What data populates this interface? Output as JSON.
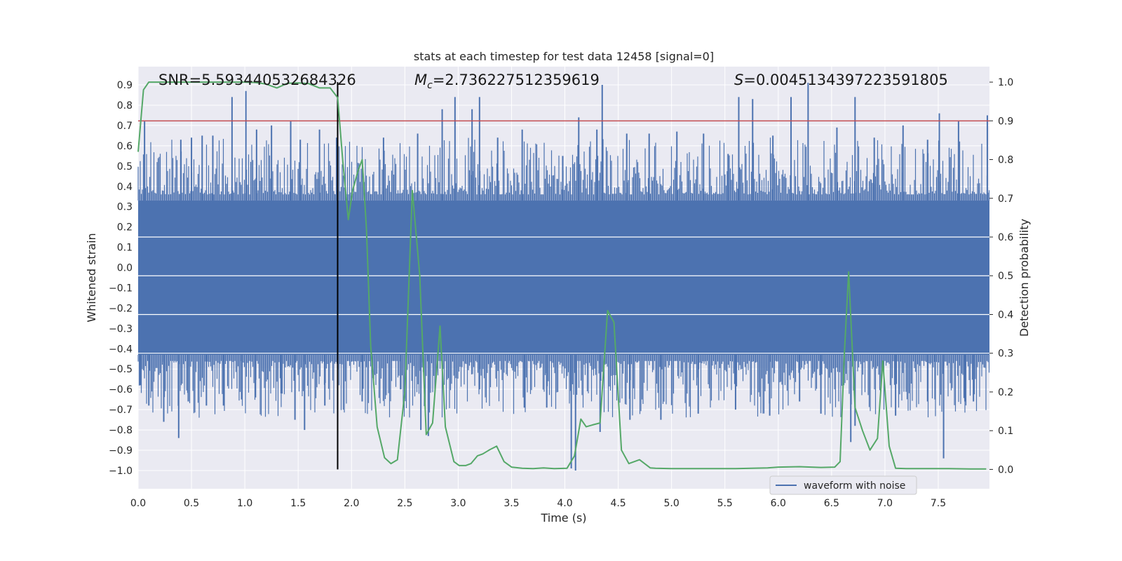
{
  "chart_data": {
    "type": "line",
    "title": "stats at each timestep for test data 12458 [signal=0]",
    "xlabel": "Time (s)",
    "ylabel": "Whitened strain",
    "y2label": "Detection probability",
    "xlim": [
      0.0,
      7.98
    ],
    "ylim": [
      -1.09,
      0.99
    ],
    "y2lim": [
      -0.05,
      1.04
    ],
    "xticks": [
      "0.0",
      "0.5",
      "1.0",
      "1.5",
      "2.0",
      "2.5",
      "3.0",
      "3.5",
      "4.0",
      "4.5",
      "5.0",
      "5.5",
      "6.0",
      "6.5",
      "7.0",
      "7.5"
    ],
    "yticks": [
      "0.9",
      "0.8",
      "0.7",
      "0.6",
      "0.5",
      "0.4",
      "0.3",
      "0.2",
      "0.1",
      "0.0",
      "−0.1",
      "−0.2",
      "−0.3",
      "−0.4",
      "−0.5",
      "−0.6",
      "−0.7",
      "−0.8",
      "−0.9",
      "−1.0"
    ],
    "y2ticks": [
      "1.0",
      "0.9",
      "0.8",
      "0.7",
      "0.6",
      "0.5",
      "0.4",
      "0.3",
      "0.2",
      "0.1",
      "0.0"
    ],
    "grid": true,
    "legend": {
      "position": "bottom-right",
      "entries": [
        "waveform with noise"
      ]
    },
    "annotations": {
      "snr": "SNR=5.593440532684326",
      "mc_symbol": "M",
      "mc_sub": "c",
      "mc_value": "=2.736227512359619",
      "s_symbol": "S",
      "s_value": "=0.004513439722359180​5"
    },
    "threshold_y2": 0.9,
    "vline_x": 1.87,
    "waveform": {
      "name": "waveform with noise",
      "color": "#4c72b0",
      "band_low": -0.43,
      "band_high": 0.33,
      "spikes_up": [
        [
          0.06,
          0.72
        ],
        [
          0.4,
          0.63
        ],
        [
          0.5,
          0.64
        ],
        [
          0.6,
          0.65
        ],
        [
          0.7,
          0.65
        ],
        [
          0.88,
          0.84
        ],
        [
          1.01,
          0.87
        ],
        [
          1.11,
          0.68
        ],
        [
          1.25,
          0.7
        ],
        [
          1.43,
          0.72
        ],
        [
          1.52,
          0.63
        ],
        [
          1.7,
          0.68
        ],
        [
          1.86,
          0.64
        ],
        [
          2.3,
          0.64
        ],
        [
          2.62,
          0.66
        ],
        [
          2.85,
          0.78
        ],
        [
          2.97,
          0.84
        ],
        [
          3.13,
          0.78
        ],
        [
          3.2,
          0.84
        ],
        [
          3.37,
          0.64
        ],
        [
          3.6,
          0.68
        ],
        [
          3.98,
          0.55
        ],
        [
          4.13,
          0.74
        ],
        [
          4.3,
          0.68
        ],
        [
          4.35,
          0.9
        ],
        [
          4.58,
          0.66
        ],
        [
          4.79,
          0.66
        ],
        [
          5.05,
          0.67
        ],
        [
          5.3,
          0.66
        ],
        [
          5.53,
          0.56
        ],
        [
          5.63,
          0.84
        ],
        [
          5.76,
          0.83
        ],
        [
          5.95,
          0.65
        ],
        [
          6.12,
          0.84
        ],
        [
          6.28,
          0.91
        ],
        [
          6.55,
          0.69
        ],
        [
          6.72,
          0.84
        ],
        [
          6.9,
          0.64
        ],
        [
          7.17,
          0.7
        ],
        [
          7.4,
          0.63
        ],
        [
          7.51,
          0.76
        ],
        [
          7.69,
          0.72
        ],
        [
          7.96,
          0.75
        ]
      ],
      "spikes_down": [
        [
          0.02,
          -0.58
        ],
        [
          0.1,
          -0.68
        ],
        [
          0.24,
          -0.76
        ],
        [
          0.38,
          -0.84
        ],
        [
          0.47,
          -0.66
        ],
        [
          0.64,
          -0.68
        ],
        [
          0.8,
          -0.68
        ],
        [
          0.97,
          -0.65
        ],
        [
          1.1,
          -0.64
        ],
        [
          1.34,
          -0.62
        ],
        [
          1.47,
          -0.75
        ],
        [
          1.56,
          -0.8
        ],
        [
          1.75,
          -0.68
        ],
        [
          2.1,
          -0.66
        ],
        [
          2.46,
          -0.6
        ],
        [
          2.65,
          -0.8
        ],
        [
          2.72,
          -0.83
        ],
        [
          3.2,
          -0.6
        ],
        [
          3.62,
          -0.69
        ],
        [
          3.83,
          -0.69
        ],
        [
          4.06,
          -0.99
        ],
        [
          4.1,
          -1.0
        ],
        [
          4.33,
          -0.81
        ],
        [
          4.61,
          -0.75
        ],
        [
          4.9,
          -0.75
        ],
        [
          5.25,
          -0.72
        ],
        [
          5.6,
          -0.7
        ],
        [
          5.92,
          -0.73
        ],
        [
          6.2,
          -0.66
        ],
        [
          6.4,
          -0.72
        ],
        [
          6.68,
          -0.86
        ],
        [
          6.72,
          -0.78
        ],
        [
          7.1,
          -0.73
        ],
        [
          7.4,
          -0.66
        ],
        [
          7.47,
          -0.65
        ],
        [
          7.55,
          -0.94
        ],
        [
          7.75,
          -0.66
        ],
        [
          7.83,
          -0.66
        ]
      ]
    },
    "probability": {
      "name": "",
      "color": "#55a868",
      "x": [
        0.0,
        0.05,
        0.1,
        0.2,
        0.4,
        0.6,
        0.8,
        1.0,
        1.1,
        1.2,
        1.3,
        1.4,
        1.5,
        1.6,
        1.7,
        1.8,
        1.87,
        1.92,
        1.97,
        2.01,
        2.06,
        2.1,
        2.14,
        2.18,
        2.24,
        2.31,
        2.37,
        2.43,
        2.5,
        2.57,
        2.64,
        2.7,
        2.76,
        2.83,
        2.88,
        2.96,
        3.01,
        3.07,
        3.12,
        3.18,
        3.23,
        3.29,
        3.36,
        3.43,
        3.5,
        3.6,
        3.7,
        3.8,
        3.9,
        4.02,
        4.09,
        4.15,
        4.2,
        4.26,
        4.33,
        4.4,
        4.46,
        4.53,
        4.6,
        4.7,
        4.8,
        4.85,
        5.0,
        5.3,
        5.6,
        5.9,
        6.0,
        6.2,
        6.4,
        6.53,
        6.58,
        6.62,
        6.66,
        6.72,
        6.79,
        6.86,
        6.93,
        6.98,
        7.04,
        7.1,
        7.2,
        7.4,
        7.6,
        7.8,
        7.95
      ],
      "y": [
        0.82,
        0.98,
        1.0,
        1.0,
        1.0,
        1.0,
        1.0,
        1.0,
        0.999,
        0.995,
        0.985,
        0.997,
        0.998,
        0.996,
        0.985,
        0.985,
        0.96,
        0.79,
        0.645,
        0.72,
        0.77,
        0.8,
        0.62,
        0.32,
        0.11,
        0.03,
        0.015,
        0.025,
        0.2,
        0.72,
        0.5,
        0.09,
        0.12,
        0.37,
        0.11,
        0.02,
        0.01,
        0.01,
        0.015,
        0.035,
        0.04,
        0.05,
        0.06,
        0.02,
        0.006,
        0.003,
        0.002,
        0.004,
        0.002,
        0.003,
        0.035,
        0.13,
        0.11,
        0.115,
        0.12,
        0.41,
        0.38,
        0.05,
        0.015,
        0.025,
        0.004,
        0.003,
        0.002,
        0.002,
        0.002,
        0.004,
        0.006,
        0.007,
        0.005,
        0.006,
        0.02,
        0.3,
        0.51,
        0.16,
        0.1,
        0.05,
        0.08,
        0.28,
        0.06,
        0.003,
        0.002,
        0.002,
        0.002,
        0.001,
        0.001
      ]
    }
  }
}
